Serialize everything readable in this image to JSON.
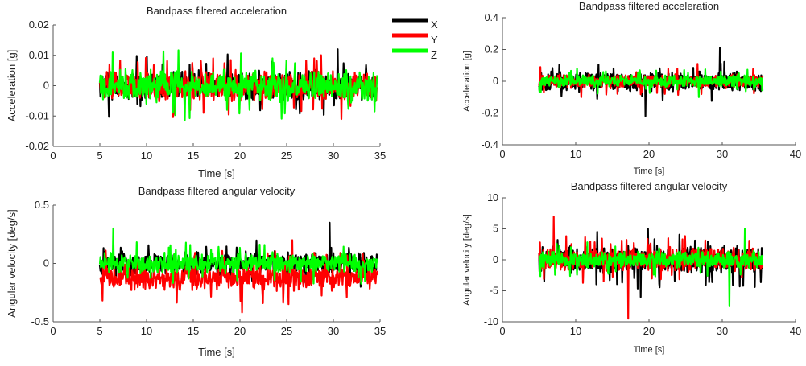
{
  "chart_data": [
    {
      "type": "line",
      "title": "Bandpass filtered acceleration",
      "xlabel": "Time [s]",
      "ylabel": "Acceleration [g]",
      "xlim": [
        0,
        35
      ],
      "ylim": [
        -0.02,
        0.02
      ],
      "xticks": [
        "0",
        "5",
        "10",
        "15",
        "20",
        "25",
        "30",
        "35"
      ],
      "yticks": [
        "0.02",
        "0.01",
        "0",
        "-0.01",
        "-0.02"
      ],
      "series": [
        {
          "name": "X",
          "color": "#000000",
          "x_range": [
            5,
            34.7
          ],
          "amplitude": 0.004,
          "min": -0.006,
          "max": 0.012
        },
        {
          "name": "Y",
          "color": "#ff0000",
          "x_range": [
            5,
            34.7
          ],
          "amplitude": 0.004,
          "min": -0.011,
          "max": 0.009
        },
        {
          "name": "Z",
          "color": "#00ff00",
          "x_range": [
            5,
            34.7
          ],
          "amplitude": 0.0045,
          "min": -0.008,
          "max": 0.009
        }
      ]
    },
    {
      "type": "line",
      "title": "Bandpass filtered acceleration",
      "xlabel": "Time [s]",
      "ylabel": "Acceleration [g]",
      "xlim": [
        0,
        40
      ],
      "ylim": [
        -0.4,
        0.4
      ],
      "xticks": [
        "0",
        "10",
        "20",
        "30",
        "40"
      ],
      "yticks": [
        "0.4",
        "0.2",
        "0",
        "-0.2",
        "-0.4"
      ],
      "series": [
        {
          "name": "X",
          "color": "#000000",
          "x_range": [
            5,
            35.5
          ],
          "amplitude": 0.05,
          "min": -0.22,
          "max": 0.21
        },
        {
          "name": "Y",
          "color": "#ff0000",
          "x_range": [
            5,
            35.5
          ],
          "amplitude": 0.035,
          "min": -0.1,
          "max": 0.11
        },
        {
          "name": "Z",
          "color": "#00ff00",
          "x_range": [
            5,
            35.5
          ],
          "amplitude": 0.03,
          "min": -0.1,
          "max": 0.08
        }
      ]
    },
    {
      "type": "line",
      "title": "Bandpass filtered angular velocity",
      "xlabel": "Time [s]",
      "ylabel": "Angular velocity [deg/s]",
      "xlim": [
        0,
        35
      ],
      "ylim": [
        -0.5,
        0.5
      ],
      "xticks": [
        "0",
        "5",
        "10",
        "15",
        "20",
        "25",
        "30",
        "35"
      ],
      "yticks": [
        "0.5",
        "0",
        "-0.5"
      ],
      "series": [
        {
          "name": "X",
          "color": "#000000",
          "x_range": [
            5,
            34.7
          ],
          "amplitude": 0.08,
          "min": -0.2,
          "max": 0.35
        },
        {
          "name": "Y",
          "color": "#ff0000",
          "x_range": [
            5,
            34.7
          ],
          "offset": -0.12,
          "amplitude": 0.09,
          "min": -0.42,
          "max": 0.2
        },
        {
          "name": "Z",
          "color": "#00ff00",
          "x_range": [
            5,
            34.7
          ],
          "amplitude": 0.07,
          "min": -0.15,
          "max": 0.3
        }
      ]
    },
    {
      "type": "line",
      "title": "Bandpass filtered angular velocity",
      "xlabel": "Time [s]",
      "ylabel": "Angular velocity [deg/s]",
      "xlim": [
        0,
        40
      ],
      "ylim": [
        -10,
        10
      ],
      "xticks": [
        "0",
        "10",
        "20",
        "30",
        "40"
      ],
      "yticks": [
        "10",
        "5",
        "0",
        "-5",
        "-10"
      ],
      "series": [
        {
          "name": "X",
          "color": "#000000",
          "x_range": [
            5,
            35.5
          ],
          "amplitude": 1.8,
          "min": -6,
          "max": 5
        },
        {
          "name": "Y",
          "color": "#ff0000",
          "x_range": [
            5,
            35.5
          ],
          "amplitude": 1.5,
          "min": -9.5,
          "max": 7
        },
        {
          "name": "Z",
          "color": "#00ff00",
          "x_range": [
            5,
            35.5
          ],
          "amplitude": 1.1,
          "min": -7.5,
          "max": 5
        }
      ]
    }
  ],
  "legend": {
    "placement": "between top panels",
    "items": [
      {
        "label": "X",
        "color": "#000000"
      },
      {
        "label": "Y",
        "color": "#ff0000"
      },
      {
        "label": "Z",
        "color": "#00ff00"
      }
    ]
  }
}
